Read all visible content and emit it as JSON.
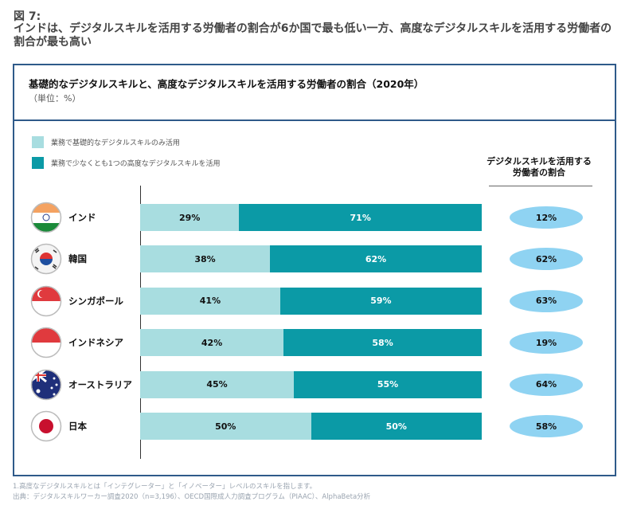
{
  "figure_label": "図 7:",
  "figure_title": "インドは、デジタルスキルを活用する労働者の割合が6か国で最も低い一方、高度なデジタルスキルを活用する労働者の割合が最も高い",
  "chart_data": {
    "type": "bar",
    "stacked": true,
    "orientation": "horizontal",
    "title": "基礎的なデジタルスキルと、高度なデジタルスキルを活用する労働者の割合（2020年）",
    "unit": "（単位：%）",
    "categories": [
      "インド",
      "韓国",
      "シンガポール",
      "インドネシア",
      "オーストラリア",
      "日本"
    ],
    "series": [
      {
        "name": "業務で基礎的なデジタルスキルのみ活用",
        "color": "#a8dde0",
        "values": [
          29,
          38,
          41,
          42,
          45,
          50
        ]
      },
      {
        "name": "業務で少なくとも1つの高度なデジタルスキルを活用",
        "color": "#0b9aa6",
        "values": [
          71,
          62,
          59,
          58,
          55,
          50
        ]
      }
    ],
    "side_column": {
      "header": "デジタルスキルを活用する労働者の割合",
      "color": "#8fd3f2",
      "values": [
        12,
        62,
        63,
        19,
        64,
        58
      ]
    },
    "xlim": [
      0,
      100
    ],
    "legend_position": "top-left"
  },
  "flags": [
    "india-flag",
    "korea-flag",
    "singapore-flag",
    "indonesia-flag",
    "australia-flag",
    "japan-flag"
  ],
  "footnotes": [
    "1.高度なデジタルスキルとは「インテグレーター」と「イノベーター」レベルのスキルを指します。",
    "出典：デジタルスキルワーカー調査2020（n=3,196）、OECD国際成人力調査プログラム（PIAAC）、AlphaBeta分析"
  ]
}
